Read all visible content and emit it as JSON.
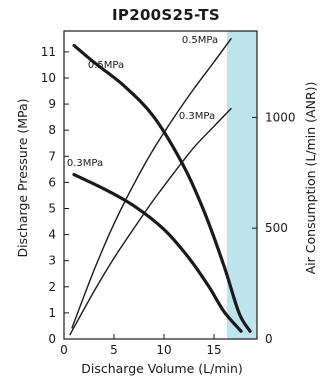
{
  "chart_data": {
    "type": "line",
    "title": "IP200S25-TS",
    "xlabel": "Discharge Volume (L/min)",
    "ylabel": "Discharge Pressure (MPa)",
    "y2label": "Air Consumption (L/min (ANR))",
    "xlim": [
      0,
      19.3
    ],
    "ylim": [
      0,
      11.8
    ],
    "y2lim": [
      0,
      1390
    ],
    "xticks": [
      "0",
      "5",
      "10",
      "15"
    ],
    "yticks": [
      "0",
      "1",
      "2",
      "3",
      "4",
      "5",
      "6",
      "7",
      "8",
      "9",
      "10",
      "11"
    ],
    "y2ticks": [
      "0",
      "500",
      "1000"
    ],
    "grid": false,
    "shaded_band": {
      "x_start": 16.3,
      "x_end": 19.3,
      "color": "#bfe3ec"
    },
    "series": [
      {
        "name": "0.5MPa",
        "axis": "pressure",
        "points": [
          [
            1.0,
            11.25
          ],
          [
            3.0,
            10.6
          ],
          [
            6.0,
            9.7
          ],
          [
            9.0,
            8.5
          ],
          [
            12.0,
            6.6
          ],
          [
            14.0,
            4.9
          ],
          [
            16.0,
            2.8
          ],
          [
            17.5,
            1.0
          ],
          [
            18.6,
            0.3
          ]
        ]
      },
      {
        "name": "0.3MPa",
        "axis": "pressure",
        "points": [
          [
            1.0,
            6.3
          ],
          [
            4.0,
            5.75
          ],
          [
            7.0,
            5.1
          ],
          [
            10.0,
            4.2
          ],
          [
            12.5,
            3.1
          ],
          [
            14.5,
            2.0
          ],
          [
            16.0,
            1.05
          ],
          [
            17.7,
            0.3
          ]
        ]
      },
      {
        "name": "0.5MPa",
        "axis": "air_consumption",
        "points": [
          [
            0.8,
            50
          ],
          [
            3.0,
            310
          ],
          [
            5.0,
            520
          ],
          [
            7.0,
            700
          ],
          [
            9.0,
            860
          ],
          [
            11.0,
            1000
          ],
          [
            13.0,
            1130
          ],
          [
            15.0,
            1250
          ],
          [
            16.7,
            1355
          ]
        ]
      },
      {
        "name": "0.3MPa",
        "axis": "air_consumption",
        "points": [
          [
            0.6,
            20
          ],
          [
            3.0,
            215
          ],
          [
            5.0,
            365
          ],
          [
            7.0,
            500
          ],
          [
            9.0,
            630
          ],
          [
            11.0,
            750
          ],
          [
            13.0,
            865
          ],
          [
            15.0,
            960
          ],
          [
            16.7,
            1040
          ]
        ]
      }
    ],
    "annotations": [
      {
        "text": "0.5MPa",
        "x": 4.2,
        "y": 10.5
      },
      {
        "text": "0.3MPa",
        "x": 2.1,
        "y": 6.75
      },
      {
        "text": "0.5MPa",
        "x": 13.6,
        "y": 11.45
      },
      {
        "text": "0.3MPa",
        "x": 13.3,
        "y": 8.55
      }
    ]
  }
}
